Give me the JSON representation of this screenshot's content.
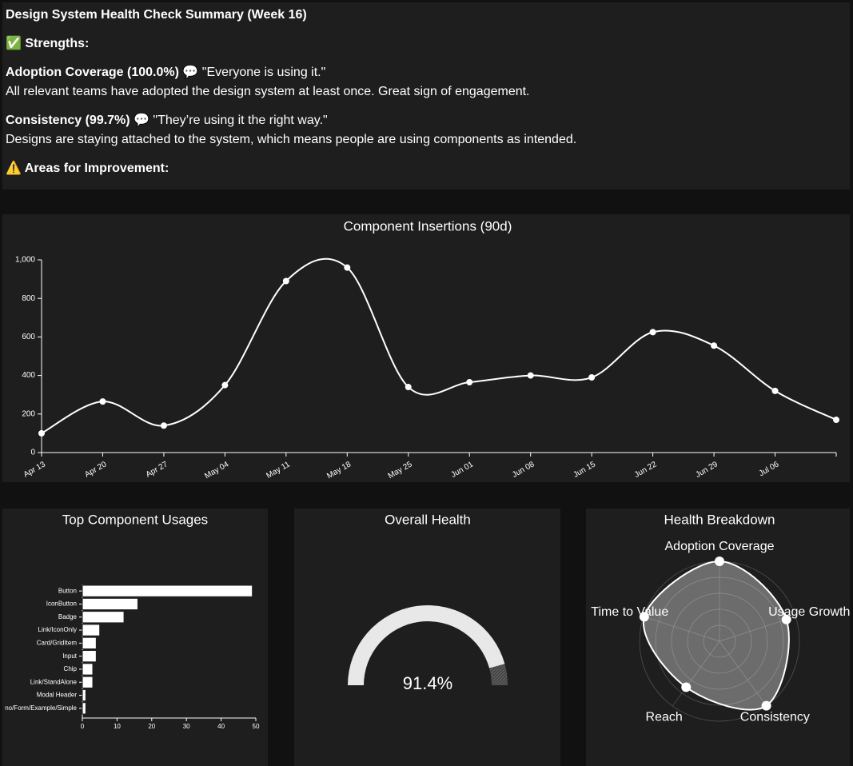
{
  "summary": {
    "title": "Design System Health Check Summary (Week 16)",
    "strengths_heading": "✅ Strengths:",
    "items": [
      {
        "name": "Adoption Coverage (100.0%)",
        "quote": "💬 \"Everyone is using it.\"",
        "text": "All relevant teams have adopted the design system at least once. Great sign of engagement."
      },
      {
        "name": "Consistency (99.7%)",
        "quote": "💬 \"They’re using it the right way.\"",
        "text": "Designs are staying attached to the system, which means people are using components as intended."
      }
    ],
    "improvement_heading": "⚠️ Areas for Improvement:"
  },
  "chart_data": [
    {
      "type": "line",
      "title": "Component Insertions (90d)",
      "categories": [
        "Apr 13",
        "Apr 20",
        "Apr 27",
        "May 04",
        "May 11",
        "May 18",
        "May 25",
        "Jun 01",
        "Jun 08",
        "Jun 15",
        "Jun 22",
        "Jun 29",
        "Jul 06",
        null
      ],
      "values": [
        100,
        265,
        140,
        350,
        890,
        960,
        340,
        365,
        400,
        390,
        625,
        555,
        320,
        170
      ],
      "color": "#ffffff",
      "ylim": [
        0,
        1000
      ],
      "yticks": [
        0,
        200,
        400,
        600,
        800,
        {
          "value": 1000,
          "label": "1,000"
        }
      ]
    },
    {
      "type": "bar",
      "title": "Top Component Usages",
      "categories": [
        "Button",
        "IconButton",
        "Badge",
        "Link/IconOnly",
        "Card/GridItem",
        "Input",
        "Chip",
        "Link/StandAlone",
        "Modal Header",
        "no/Form/Example/Simple"
      ],
      "values": [
        49,
        16,
        12,
        5,
        4,
        4,
        3,
        3,
        1,
        1
      ],
      "color": "#ffffff",
      "xlim": [
        0,
        50
      ],
      "xticks": [
        0,
        10,
        20,
        30,
        40,
        50
      ]
    },
    {
      "type": "gauge",
      "title": "Overall Health",
      "value": 91.4,
      "value_label": "91.4%",
      "ylim": [
        0,
        100
      ],
      "color": "#e8e8e8"
    },
    {
      "type": "radar",
      "title": "Health Breakdown",
      "categories": [
        "Adoption Coverage",
        "Usage Growth",
        "Consistency",
        "Reach",
        "Time to Value"
      ],
      "values": [
        100,
        88,
        99.7,
        71,
        99
      ],
      "rlim": [
        0,
        100
      ],
      "rticks": [
        20,
        40,
        60,
        80,
        100
      ],
      "color": "#ffffff"
    }
  ]
}
